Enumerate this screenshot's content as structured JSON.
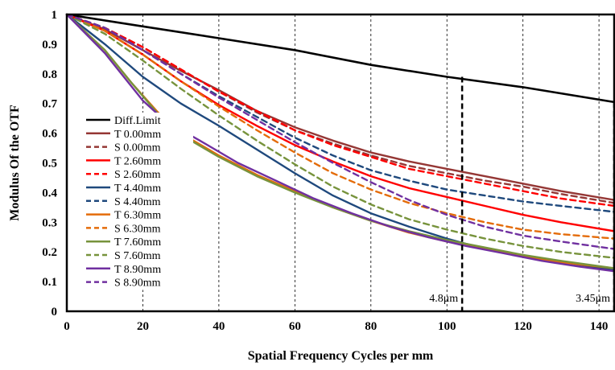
{
  "chart_data": {
    "type": "line",
    "xlabel": "Spatial Frequency Cycles per mm",
    "ylabel": "Modulus Of  the OTF",
    "xlim": [
      0,
      144
    ],
    "ylim": [
      0,
      1
    ],
    "xticks": [
      "0",
      "20",
      "40",
      "60",
      "80",
      "100",
      "120",
      "140"
    ],
    "yticks": [
      "0",
      "0.1",
      "0.2",
      "0.3",
      "0.4",
      "0.5",
      "0.6",
      "0.7",
      "0.8",
      "0.9",
      "1"
    ],
    "x_tick_values": [
      0,
      20,
      40,
      60,
      80,
      100,
      120,
      140
    ],
    "y_tick_values": [
      0,
      0.1,
      0.2,
      0.3,
      0.4,
      0.5,
      0.6,
      0.7,
      0.8,
      0.9,
      1
    ],
    "grid": "vertical-dashed",
    "legend_position": "left-center",
    "markers": [
      {
        "x": 104,
        "y_top": 0.79,
        "label": "4.8μm"
      },
      {
        "x": 144,
        "y_top": 0.705,
        "label": "3.45μm"
      }
    ],
    "series": [
      {
        "name": "Diff.Limit",
        "color": "#000000",
        "dash": "solid",
        "x": [
          0,
          20,
          40,
          60,
          80,
          100,
          120,
          144
        ],
        "y": [
          1.0,
          0.96,
          0.92,
          0.88,
          0.83,
          0.79,
          0.755,
          0.705
        ]
      },
      {
        "name": "T 0.00mm",
        "color": "#953735",
        "dash": "solid",
        "x": [
          0,
          10,
          20,
          30,
          40,
          50,
          60,
          70,
          80,
          90,
          100,
          110,
          120,
          130,
          144
        ],
        "y": [
          1.0,
          0.95,
          0.88,
          0.81,
          0.745,
          0.675,
          0.62,
          0.575,
          0.535,
          0.505,
          0.48,
          0.455,
          0.43,
          0.405,
          0.375
        ]
      },
      {
        "name": "S 0.00mm",
        "color": "#953735",
        "dash": "dashed",
        "x": [
          0,
          10,
          20,
          30,
          40,
          50,
          60,
          70,
          80,
          90,
          100,
          110,
          120,
          130,
          144
        ],
        "y": [
          1.0,
          0.955,
          0.89,
          0.815,
          0.74,
          0.67,
          0.61,
          0.565,
          0.525,
          0.49,
          0.465,
          0.44,
          0.42,
          0.395,
          0.365
        ]
      },
      {
        "name": "T 2.60mm",
        "color": "#ff0000",
        "dash": "solid",
        "x": [
          0,
          10,
          20,
          30,
          40,
          50,
          60,
          70,
          80,
          90,
          100,
          110,
          120,
          130,
          144
        ],
        "y": [
          1.0,
          0.945,
          0.865,
          0.775,
          0.695,
          0.625,
          0.56,
          0.505,
          0.455,
          0.415,
          0.385,
          0.355,
          0.325,
          0.3,
          0.27
        ]
      },
      {
        "name": "S 2.60mm",
        "color": "#ff0000",
        "dash": "dashed",
        "x": [
          0,
          10,
          20,
          30,
          40,
          50,
          60,
          70,
          80,
          90,
          100,
          110,
          120,
          130,
          144
        ],
        "y": [
          1.0,
          0.955,
          0.89,
          0.815,
          0.74,
          0.675,
          0.61,
          0.56,
          0.52,
          0.48,
          0.455,
          0.43,
          0.405,
          0.38,
          0.355
        ]
      },
      {
        "name": "T 4.40mm",
        "color": "#1f497d",
        "dash": "solid",
        "x": [
          0,
          10,
          20,
          30,
          40,
          50,
          60,
          70,
          80,
          90,
          100,
          110,
          120,
          130,
          144
        ],
        "y": [
          1.0,
          0.9,
          0.79,
          0.7,
          0.625,
          0.545,
          0.465,
          0.39,
          0.33,
          0.285,
          0.245,
          0.21,
          0.185,
          0.165,
          0.14
        ]
      },
      {
        "name": "S 4.40mm",
        "color": "#1f497d",
        "dash": "dashed",
        "x": [
          0,
          10,
          20,
          30,
          40,
          50,
          60,
          70,
          80,
          90,
          100,
          110,
          120,
          130,
          144
        ],
        "y": [
          1.0,
          0.955,
          0.88,
          0.8,
          0.725,
          0.655,
          0.585,
          0.525,
          0.475,
          0.44,
          0.41,
          0.39,
          0.37,
          0.355,
          0.335
        ]
      },
      {
        "name": "T 6.30mm",
        "color": "#e46c0a",
        "dash": "solid",
        "x": [
          0,
          10,
          17,
          24,
          30,
          40,
          50,
          60,
          70,
          80,
          90,
          100,
          110,
          120,
          130,
          144
        ],
        "y": [
          1.0,
          0.88,
          0.77,
          0.67,
          0.6,
          0.525,
          0.46,
          0.405,
          0.35,
          0.305,
          0.265,
          0.235,
          0.21,
          0.185,
          0.165,
          0.145
        ]
      },
      {
        "name": "S 6.30mm",
        "color": "#e46c0a",
        "dash": "dashed",
        "x": [
          0,
          10,
          20,
          30,
          40,
          50,
          60,
          70,
          80,
          90,
          100,
          110,
          120,
          130,
          144
        ],
        "y": [
          1.0,
          0.945,
          0.865,
          0.775,
          0.69,
          0.61,
          0.535,
          0.465,
          0.41,
          0.365,
          0.33,
          0.3,
          0.275,
          0.26,
          0.245
        ]
      },
      {
        "name": "T 7.60mm",
        "color": "#77933c",
        "dash": "solid",
        "x": [
          0,
          10,
          17,
          24,
          30,
          40,
          50,
          60,
          70,
          80,
          90,
          100,
          110,
          120,
          130,
          144
        ],
        "y": [
          1.0,
          0.88,
          0.77,
          0.665,
          0.595,
          0.52,
          0.455,
          0.4,
          0.35,
          0.305,
          0.27,
          0.24,
          0.215,
          0.19,
          0.17,
          0.145
        ]
      },
      {
        "name": "S 7.60mm",
        "color": "#77933c",
        "dash": "dashed",
        "x": [
          0,
          10,
          20,
          30,
          40,
          50,
          60,
          70,
          80,
          90,
          100,
          110,
          120,
          130,
          144
        ],
        "y": [
          1.0,
          0.935,
          0.845,
          0.75,
          0.66,
          0.575,
          0.495,
          0.42,
          0.36,
          0.31,
          0.275,
          0.245,
          0.22,
          0.2,
          0.18
        ]
      },
      {
        "name": "T 8.90mm",
        "color": "#7030a0",
        "dash": "solid",
        "x": [
          0,
          10,
          15,
          20,
          26,
          35,
          45,
          55,
          65,
          75,
          85,
          95,
          105,
          115,
          125,
          135,
          144
        ],
        "y": [
          1.0,
          0.87,
          0.79,
          0.71,
          0.64,
          0.575,
          0.5,
          0.44,
          0.38,
          0.33,
          0.285,
          0.25,
          0.22,
          0.195,
          0.17,
          0.15,
          0.135
        ]
      },
      {
        "name": "S 8.90mm",
        "color": "#7030a0",
        "dash": "dashed",
        "x": [
          0,
          10,
          20,
          30,
          40,
          50,
          60,
          70,
          80,
          90,
          100,
          110,
          120,
          130,
          144
        ],
        "y": [
          1.0,
          0.955,
          0.88,
          0.8,
          0.72,
          0.645,
          0.57,
          0.5,
          0.435,
          0.375,
          0.325,
          0.285,
          0.255,
          0.235,
          0.21
        ]
      }
    ]
  }
}
